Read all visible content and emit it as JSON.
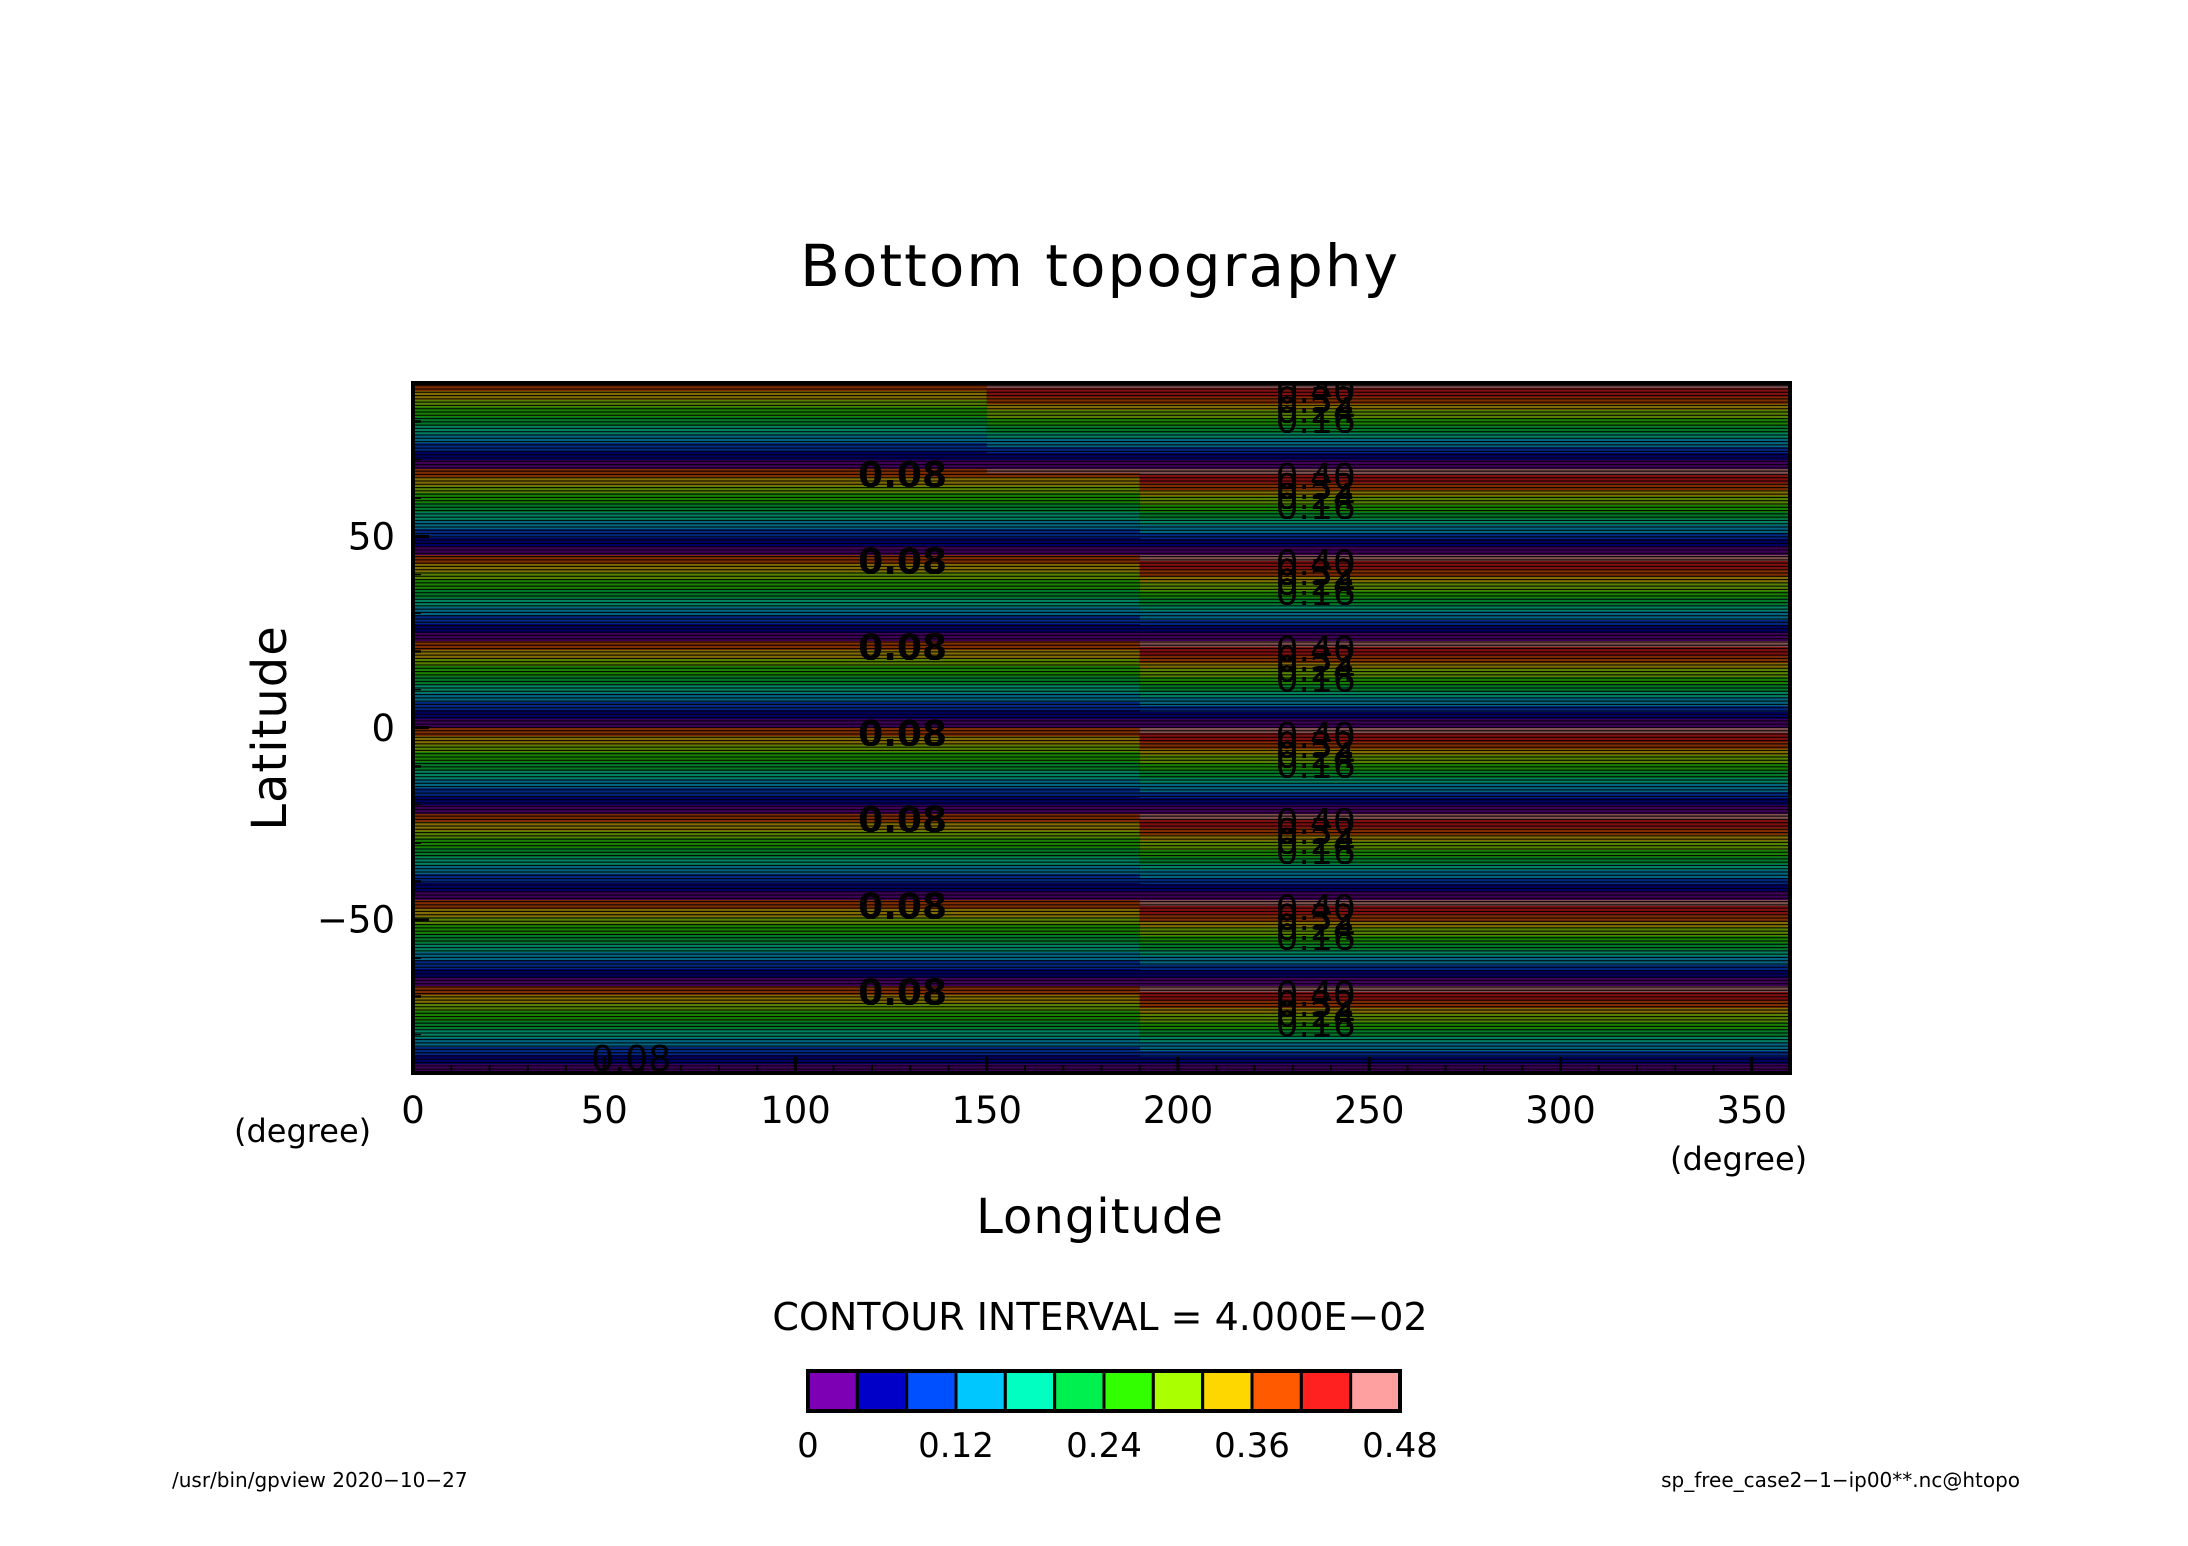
{
  "chart_data": {
    "type": "heatmap",
    "title": "Bottom topography",
    "xlabel": "Longitude",
    "ylabel": "Latitude",
    "x_unit": "(degree)",
    "y_unit": "(degree)",
    "xlim": [
      0,
      360
    ],
    "ylim": [
      -90,
      90
    ],
    "x_ticks": [
      "0",
      "50",
      "100",
      "150",
      "200",
      "250",
      "300",
      "350"
    ],
    "y_ticks": [
      "50",
      "0",
      "−50"
    ],
    "contour_interval_text": "CONTOUR INTERVAL = 4.000E−02",
    "levels": [
      0,
      0.04,
      0.08,
      0.12,
      0.16,
      0.2,
      0.24,
      0.28,
      0.32,
      0.36,
      0.4,
      0.44,
      0.48
    ],
    "colorbar_ticks": [
      "0",
      "0.12",
      "0.24",
      "0.36",
      "0.48"
    ],
    "colorbar_colors": [
      "#7d00b4",
      "#0000c8",
      "#0050ff",
      "#00c8ff",
      "#00ffc0",
      "#00f050",
      "#32ff00",
      "#aaff00",
      "#ffd700",
      "#ff5a00",
      "#ff2020",
      "#ffa0a0"
    ],
    "field_description_bands": {
      "period_deg_lat": 22.5,
      "ridge_start_lon_west": 0,
      "ridge_step_lon": 190,
      "ridge_step_lon_northernmost": 150,
      "west_max": 0.4,
      "east_max": 0.48,
      "min": 0.0
    },
    "contour_labels": {
      "west": "0.08",
      "east": [
        "0.40",
        "0.32",
        "0.24",
        "0.16"
      ],
      "bottom_west": "0.08"
    }
  },
  "footer": {
    "left": "/usr/bin/gpview   2020−10−27",
    "right": "sp_free_case2−1−ip00**.nc@htopo"
  }
}
